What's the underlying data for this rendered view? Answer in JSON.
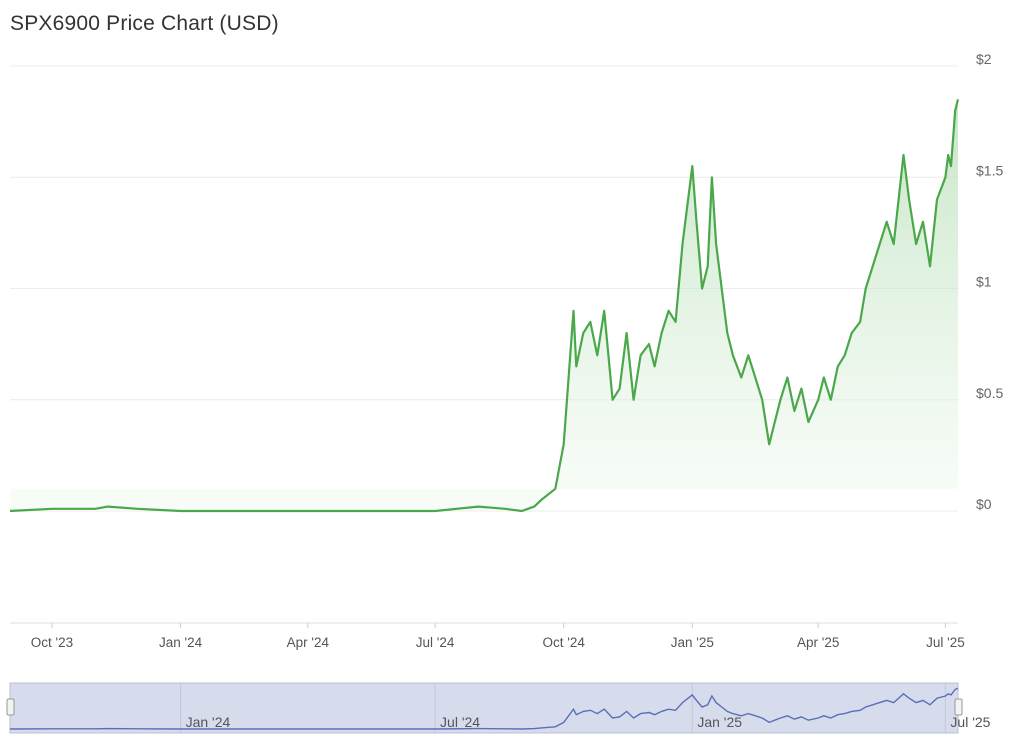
{
  "title": "SPX6900 Price Chart (USD)",
  "colors": {
    "line": "#4aa84a",
    "fill_top": "#a8d8a8",
    "navigator_line": "#5b6fb8",
    "navigator_bg": "#d6dcec",
    "grid": "#ececec"
  },
  "chart_data": {
    "type": "area",
    "title": "SPX6900 Price Chart (USD)",
    "xlabel": "",
    "ylabel": "",
    "y_ticks": [
      "$2",
      "$1.5",
      "$1",
      "$0.5",
      "$0"
    ],
    "y_tick_values": [
      2,
      1.5,
      1,
      0.5,
      0
    ],
    "ylim": [
      -0.5,
      2.1
    ],
    "x_range": [
      "2023-09-01",
      "2025-07-10"
    ],
    "x_ticks": [
      {
        "label": "Oct '23",
        "date": "2023-10-01"
      },
      {
        "label": "Jan '24",
        "date": "2024-01-01"
      },
      {
        "label": "Apr '24",
        "date": "2024-04-01"
      },
      {
        "label": "Jul '24",
        "date": "2024-07-01"
      },
      {
        "label": "Oct '24",
        "date": "2024-10-01"
      },
      {
        "label": "Jan '25",
        "date": "2025-01-01"
      },
      {
        "label": "Apr '25",
        "date": "2025-04-01"
      },
      {
        "label": "Jul '25",
        "date": "2025-07-01"
      }
    ],
    "grid": true,
    "navigator": {
      "ticks": [
        {
          "label": "Jan '24",
          "date": "2024-01-01"
        },
        {
          "label": "Jul '24",
          "date": "2024-07-01"
        },
        {
          "label": "Jan '25",
          "date": "2025-01-01"
        },
        {
          "label": "Jul '25",
          "date": "2025-07-01"
        }
      ]
    },
    "series": [
      {
        "x": [
          "2023-09-01",
          "2023-10-01",
          "2023-11-01",
          "2023-11-10",
          "2023-12-01",
          "2024-01-01",
          "2024-02-01",
          "2024-03-01",
          "2024-04-01",
          "2024-05-01",
          "2024-06-01",
          "2024-07-01",
          "2024-08-01",
          "2024-08-20",
          "2024-09-01",
          "2024-09-10",
          "2024-09-15",
          "2024-09-25",
          "2024-10-01",
          "2024-10-08",
          "2024-10-10",
          "2024-10-15",
          "2024-10-20",
          "2024-10-25",
          "2024-10-30",
          "2024-11-05",
          "2024-11-10",
          "2024-11-15",
          "2024-11-20",
          "2024-11-25",
          "2024-12-01",
          "2024-12-05",
          "2024-12-10",
          "2024-12-15",
          "2024-12-20",
          "2024-12-25",
          "2025-01-01",
          "2025-01-04",
          "2025-01-08",
          "2025-01-12",
          "2025-01-15",
          "2025-01-18",
          "2025-01-22",
          "2025-01-26",
          "2025-01-30",
          "2025-02-05",
          "2025-02-10",
          "2025-02-15",
          "2025-02-20",
          "2025-02-25",
          "2025-03-01",
          "2025-03-05",
          "2025-03-10",
          "2025-03-15",
          "2025-03-20",
          "2025-03-25",
          "2025-04-01",
          "2025-04-05",
          "2025-04-10",
          "2025-04-15",
          "2025-04-20",
          "2025-04-25",
          "2025-05-01",
          "2025-05-05",
          "2025-05-10",
          "2025-05-15",
          "2025-05-20",
          "2025-05-25",
          "2025-06-01",
          "2025-06-05",
          "2025-06-10",
          "2025-06-15",
          "2025-06-20",
          "2025-06-25",
          "2025-07-01",
          "2025-07-03",
          "2025-07-05",
          "2025-07-08",
          "2025-07-10"
        ],
        "values": [
          0.0,
          0.01,
          0.01,
          0.02,
          0.01,
          0.0,
          0.0,
          0.0,
          0.0,
          0.0,
          0.0,
          0.0,
          0.02,
          0.01,
          0.0,
          0.02,
          0.05,
          0.1,
          0.3,
          0.9,
          0.65,
          0.8,
          0.85,
          0.7,
          0.9,
          0.5,
          0.55,
          0.8,
          0.5,
          0.7,
          0.75,
          0.65,
          0.8,
          0.9,
          0.85,
          1.2,
          1.55,
          1.3,
          1.0,
          1.1,
          1.5,
          1.2,
          1.0,
          0.8,
          0.7,
          0.6,
          0.7,
          0.6,
          0.5,
          0.3,
          0.4,
          0.5,
          0.6,
          0.45,
          0.55,
          0.4,
          0.5,
          0.6,
          0.5,
          0.65,
          0.7,
          0.8,
          0.85,
          1.0,
          1.1,
          1.2,
          1.3,
          1.2,
          1.6,
          1.4,
          1.2,
          1.3,
          1.1,
          1.4,
          1.5,
          1.6,
          1.55,
          1.8,
          1.85
        ]
      }
    ]
  }
}
